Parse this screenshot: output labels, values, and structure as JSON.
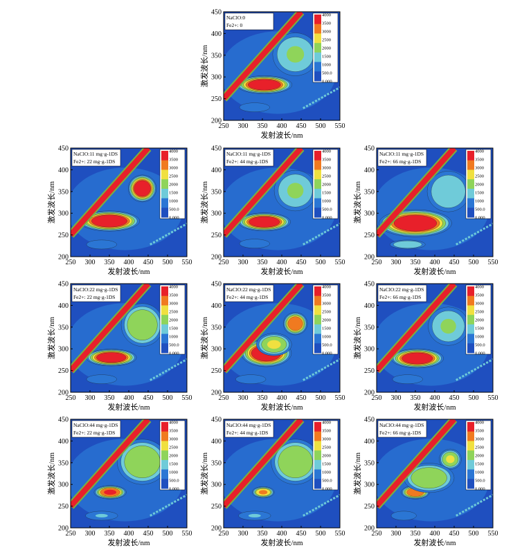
{
  "figure": {
    "xlabel": "发射波长/nm",
    "ylabel": "激发波长/nm"
  },
  "colors": {
    "background": "#1f4fbf",
    "low": "#2b76d4",
    "mid": "#6fcbd9",
    "green": "#8fd45a",
    "yellow": "#f0e040",
    "orange": "#f07a20",
    "red": "#e8202a",
    "contour": "#1a1a1a",
    "diagonal_line": "#7ab040"
  },
  "colorbar": {
    "ticks": [
      "4000",
      "3500",
      "3000",
      "2500",
      "2000",
      "1500",
      "1000",
      "500.0",
      "0.000"
    ]
  },
  "chart_data": [
    {
      "type": "heatmap",
      "id": "p0",
      "legend": [
        "NaClO:0",
        "Fe2+: 0"
      ],
      "xlabel": "发射波长/nm",
      "ylabel": "激发波长/nm",
      "xlim": [
        250,
        550
      ],
      "ylim": [
        200,
        450
      ],
      "xticks": [
        "250",
        "300",
        "350",
        "400",
        "450",
        "500",
        "550"
      ],
      "yticks": [
        "200",
        "250",
        "300",
        "350",
        "400",
        "450"
      ],
      "peaks": [
        {
          "x": 355,
          "y": 282,
          "intensity": 4000,
          "rx": 55,
          "ry": 16
        },
        {
          "x": 435,
          "y": 352,
          "intensity": 1700,
          "rx": 45,
          "ry": 38
        },
        {
          "x": 330,
          "y": 230,
          "intensity": 800,
          "rx": 30,
          "ry": 8
        }
      ]
    },
    {
      "type": "heatmap",
      "id": "p1",
      "legend": [
        "NaClO:11 mg·g-1DS",
        "Fe2+: 22 mg·g-1DS"
      ],
      "xlabel": "发射波长/nm",
      "ylabel": "激发波长/nm",
      "xlim": [
        250,
        550
      ],
      "ylim": [
        200,
        450
      ],
      "xticks": [
        "250",
        "300",
        "350",
        "400",
        "450",
        "500",
        "550"
      ],
      "yticks": [
        "200",
        "250",
        "300",
        "350",
        "400",
        "450"
      ],
      "peaks": [
        {
          "x": 350,
          "y": 282,
          "intensity": 4000,
          "rx": 60,
          "ry": 18
        },
        {
          "x": 435,
          "y": 357,
          "intensity": 3800,
          "rx": 28,
          "ry": 24
        },
        {
          "x": 330,
          "y": 228,
          "intensity": 700,
          "rx": 30,
          "ry": 8
        }
      ]
    },
    {
      "type": "heatmap",
      "id": "p2",
      "legend": [
        "NaClO:11 mg·g-1DS",
        "Fe2+: 44 mg·g-1DS"
      ],
      "xlabel": "发射波长/nm",
      "ylabel": "激发波长/nm",
      "xlim": [
        250,
        550
      ],
      "ylim": [
        200,
        450
      ],
      "xticks": [
        "250",
        "300",
        "350",
        "400",
        "450",
        "500",
        "550"
      ],
      "yticks": [
        "200",
        "250",
        "300",
        "350",
        "400",
        "450"
      ],
      "peaks": [
        {
          "x": 355,
          "y": 280,
          "intensity": 4000,
          "rx": 52,
          "ry": 16
        },
        {
          "x": 435,
          "y": 352,
          "intensity": 1600,
          "rx": 42,
          "ry": 36
        },
        {
          "x": 330,
          "y": 230,
          "intensity": 800,
          "rx": 30,
          "ry": 8
        }
      ]
    },
    {
      "type": "heatmap",
      "id": "p3",
      "legend": [
        "NaClO:11 mg·g-1DS",
        "Fe2+: 66 mg·g-1DS"
      ],
      "xlabel": "发射波长/nm",
      "ylabel": "激发波长/nm",
      "xlim": [
        250,
        550
      ],
      "ylim": [
        200,
        450
      ],
      "xticks": [
        "250",
        "300",
        "350",
        "400",
        "450",
        "500",
        "550"
      ],
      "yticks": [
        "200",
        "250",
        "300",
        "350",
        "400",
        "450"
      ],
      "peaks": [
        {
          "x": 350,
          "y": 277,
          "intensity": 4000,
          "rx": 72,
          "ry": 24
        },
        {
          "x": 435,
          "y": 350,
          "intensity": 1500,
          "rx": 42,
          "ry": 36
        },
        {
          "x": 330,
          "y": 228,
          "intensity": 1500,
          "rx": 35,
          "ry": 8
        }
      ]
    },
    {
      "type": "heatmap",
      "id": "p4",
      "legend": [
        "NaClO:22 mg·g-1DS",
        "Fe2+: 22 mg·g-1DS"
      ],
      "xlabel": "发射波长/nm",
      "ylabel": "激发波长/nm",
      "xlim": [
        250,
        550
      ],
      "ylim": [
        200,
        450
      ],
      "xticks": [
        "250",
        "300",
        "350",
        "400",
        "450",
        "500",
        "550"
      ],
      "yticks": [
        "200",
        "250",
        "300",
        "350",
        "400",
        "450"
      ],
      "peaks": [
        {
          "x": 355,
          "y": 280,
          "intensity": 4000,
          "rx": 50,
          "ry": 15
        },
        {
          "x": 435,
          "y": 355,
          "intensity": 2200,
          "rx": 42,
          "ry": 38
        },
        {
          "x": 330,
          "y": 230,
          "intensity": 800,
          "rx": 30,
          "ry": 8
        }
      ]
    },
    {
      "type": "heatmap",
      "id": "p5",
      "legend": [
        "NaClO:22 mg·g-1DS",
        "Fe2+: 44 mg·g-1DS"
      ],
      "xlabel": "发射波长/nm",
      "ylabel": "激发波长/nm",
      "xlim": [
        250,
        550
      ],
      "ylim": [
        200,
        450
      ],
      "xticks": [
        "250",
        "300",
        "350",
        "400",
        "450",
        "500",
        "550"
      ],
      "yticks": [
        "200",
        "250",
        "300",
        "350",
        "400",
        "450"
      ],
      "peaks": [
        {
          "x": 360,
          "y": 290,
          "intensity": 4000,
          "rx": 50,
          "ry": 24
        },
        {
          "x": 435,
          "y": 358,
          "intensity": 3200,
          "rx": 24,
          "ry": 20
        },
        {
          "x": 380,
          "y": 310,
          "intensity": 2400,
          "rx": 35,
          "ry": 20
        },
        {
          "x": 320,
          "y": 230,
          "intensity": 700,
          "rx": 30,
          "ry": 8
        }
      ]
    },
    {
      "type": "heatmap",
      "id": "p6",
      "legend": [
        "NaClO:22 mg·g-1DS",
        "Fe2+: 66 mg·g-1DS"
      ],
      "xlabel": "发射波长/nm",
      "ylabel": "激发波长/nm",
      "xlim": [
        250,
        550
      ],
      "ylim": [
        200,
        450
      ],
      "xticks": [
        "250",
        "300",
        "350",
        "400",
        "450",
        "500",
        "550"
      ],
      "yticks": [
        "200",
        "250",
        "300",
        "350",
        "400",
        "450"
      ],
      "peaks": [
        {
          "x": 355,
          "y": 278,
          "intensity": 4000,
          "rx": 52,
          "ry": 17
        },
        {
          "x": 435,
          "y": 352,
          "intensity": 1600,
          "rx": 40,
          "ry": 34
        },
        {
          "x": 330,
          "y": 230,
          "intensity": 800,
          "rx": 30,
          "ry": 8
        }
      ]
    },
    {
      "type": "heatmap",
      "id": "p7",
      "legend": [
        "NaClO:44 mg·g-1DS",
        "Fe2+: 22 mg·g-1DS"
      ],
      "xlabel": "发射波长/nm",
      "ylabel": "激发波长/nm",
      "xlim": [
        250,
        550
      ],
      "ylim": [
        200,
        450
      ],
      "xticks": [
        "250",
        "300",
        "350",
        "400",
        "450",
        "500",
        "550"
      ],
      "yticks": [
        "200",
        "250",
        "300",
        "350",
        "400",
        "450"
      ],
      "peaks": [
        {
          "x": 352,
          "y": 282,
          "intensity": 3600,
          "rx": 32,
          "ry": 12
        },
        {
          "x": 435,
          "y": 352,
          "intensity": 2000,
          "rx": 50,
          "ry": 40
        },
        {
          "x": 330,
          "y": 228,
          "intensity": 900,
          "rx": 32,
          "ry": 8
        }
      ]
    },
    {
      "type": "heatmap",
      "id": "p8",
      "legend": [
        "NaClO:44 mg·g-1DS",
        "Fe2+: 44 mg·g-1DS"
      ],
      "xlabel": "发射波长/nm",
      "ylabel": "激发波长/nm",
      "xlim": [
        250,
        550
      ],
      "ylim": [
        200,
        450
      ],
      "xticks": [
        "250",
        "300",
        "350",
        "400",
        "450",
        "500",
        "550"
      ],
      "yticks": [
        "200",
        "250",
        "300",
        "350",
        "400",
        "450"
      ],
      "peaks": [
        {
          "x": 352,
          "y": 282,
          "intensity": 3000,
          "rx": 22,
          "ry": 10
        },
        {
          "x": 435,
          "y": 352,
          "intensity": 1900,
          "rx": 48,
          "ry": 40
        },
        {
          "x": 330,
          "y": 228,
          "intensity": 900,
          "rx": 32,
          "ry": 8
        }
      ]
    },
    {
      "type": "heatmap",
      "id": "p9",
      "legend": [
        "NaClO:44 mg·g-1DS",
        "Fe2+: 66 mg·g-1DS"
      ],
      "xlabel": "发射波长/nm",
      "ylabel": "激发波长/nm",
      "xlim": [
        250,
        550
      ],
      "ylim": [
        200,
        450
      ],
      "xticks": [
        "250",
        "300",
        "350",
        "400",
        "450",
        "500",
        "550"
      ],
      "yticks": [
        "200",
        "250",
        "300",
        "350",
        "400",
        "450"
      ],
      "peaks": [
        {
          "x": 350,
          "y": 282,
          "intensity": 3400,
          "rx": 28,
          "ry": 12
        },
        {
          "x": 440,
          "y": 358,
          "intensity": 2400,
          "rx": 22,
          "ry": 18
        },
        {
          "x": 385,
          "y": 315,
          "intensity": 1800,
          "rx": 50,
          "ry": 26
        },
        {
          "x": 320,
          "y": 228,
          "intensity": 700,
          "rx": 25,
          "ry": 8
        }
      ]
    }
  ]
}
